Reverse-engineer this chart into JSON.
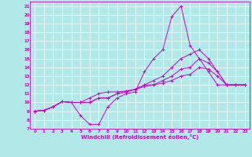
{
  "title": "",
  "xlabel": "Windchill (Refroidissement éolien,°C)",
  "ylabel": "",
  "background_color": "#b2e8e8",
  "line_color": "#cc00cc",
  "grid_color": "#ffffff",
  "xlim": [
    -0.5,
    23.5
  ],
  "ylim": [
    7,
    21.5
  ],
  "xticks": [
    0,
    1,
    2,
    3,
    4,
    5,
    6,
    7,
    8,
    9,
    10,
    11,
    12,
    13,
    14,
    15,
    16,
    17,
    18,
    19,
    20,
    21,
    22,
    23
  ],
  "yticks": [
    7,
    8,
    9,
    10,
    11,
    12,
    13,
    14,
    15,
    16,
    17,
    18,
    19,
    20,
    21
  ],
  "series": [
    [
      9.0,
      9.1,
      9.5,
      10.1,
      10.0,
      8.5,
      7.5,
      7.5,
      9.5,
      10.5,
      11.0,
      11.2,
      13.5,
      15.0,
      16.0,
      19.8,
      21.0,
      16.5,
      15.0,
      13.5,
      12.0,
      12.0,
      12.0,
      12.0
    ],
    [
      9.0,
      9.1,
      9.5,
      10.1,
      10.0,
      10.0,
      10.0,
      10.5,
      10.5,
      11.0,
      11.2,
      11.5,
      12.0,
      12.5,
      13.0,
      14.0,
      15.0,
      15.5,
      16.0,
      15.0,
      13.5,
      12.0,
      12.0,
      12.0
    ],
    [
      9.0,
      9.1,
      9.5,
      10.1,
      10.0,
      10.0,
      10.0,
      10.5,
      10.5,
      11.0,
      11.2,
      11.5,
      12.0,
      12.0,
      12.5,
      13.0,
      13.8,
      14.0,
      15.0,
      14.5,
      13.5,
      12.0,
      12.0,
      12.0
    ],
    [
      9.0,
      9.1,
      9.5,
      10.1,
      10.0,
      10.0,
      10.5,
      11.0,
      11.2,
      11.2,
      11.3,
      11.5,
      11.8,
      12.0,
      12.2,
      12.5,
      13.0,
      13.2,
      14.0,
      13.8,
      13.0,
      12.0,
      12.0,
      12.0
    ]
  ]
}
